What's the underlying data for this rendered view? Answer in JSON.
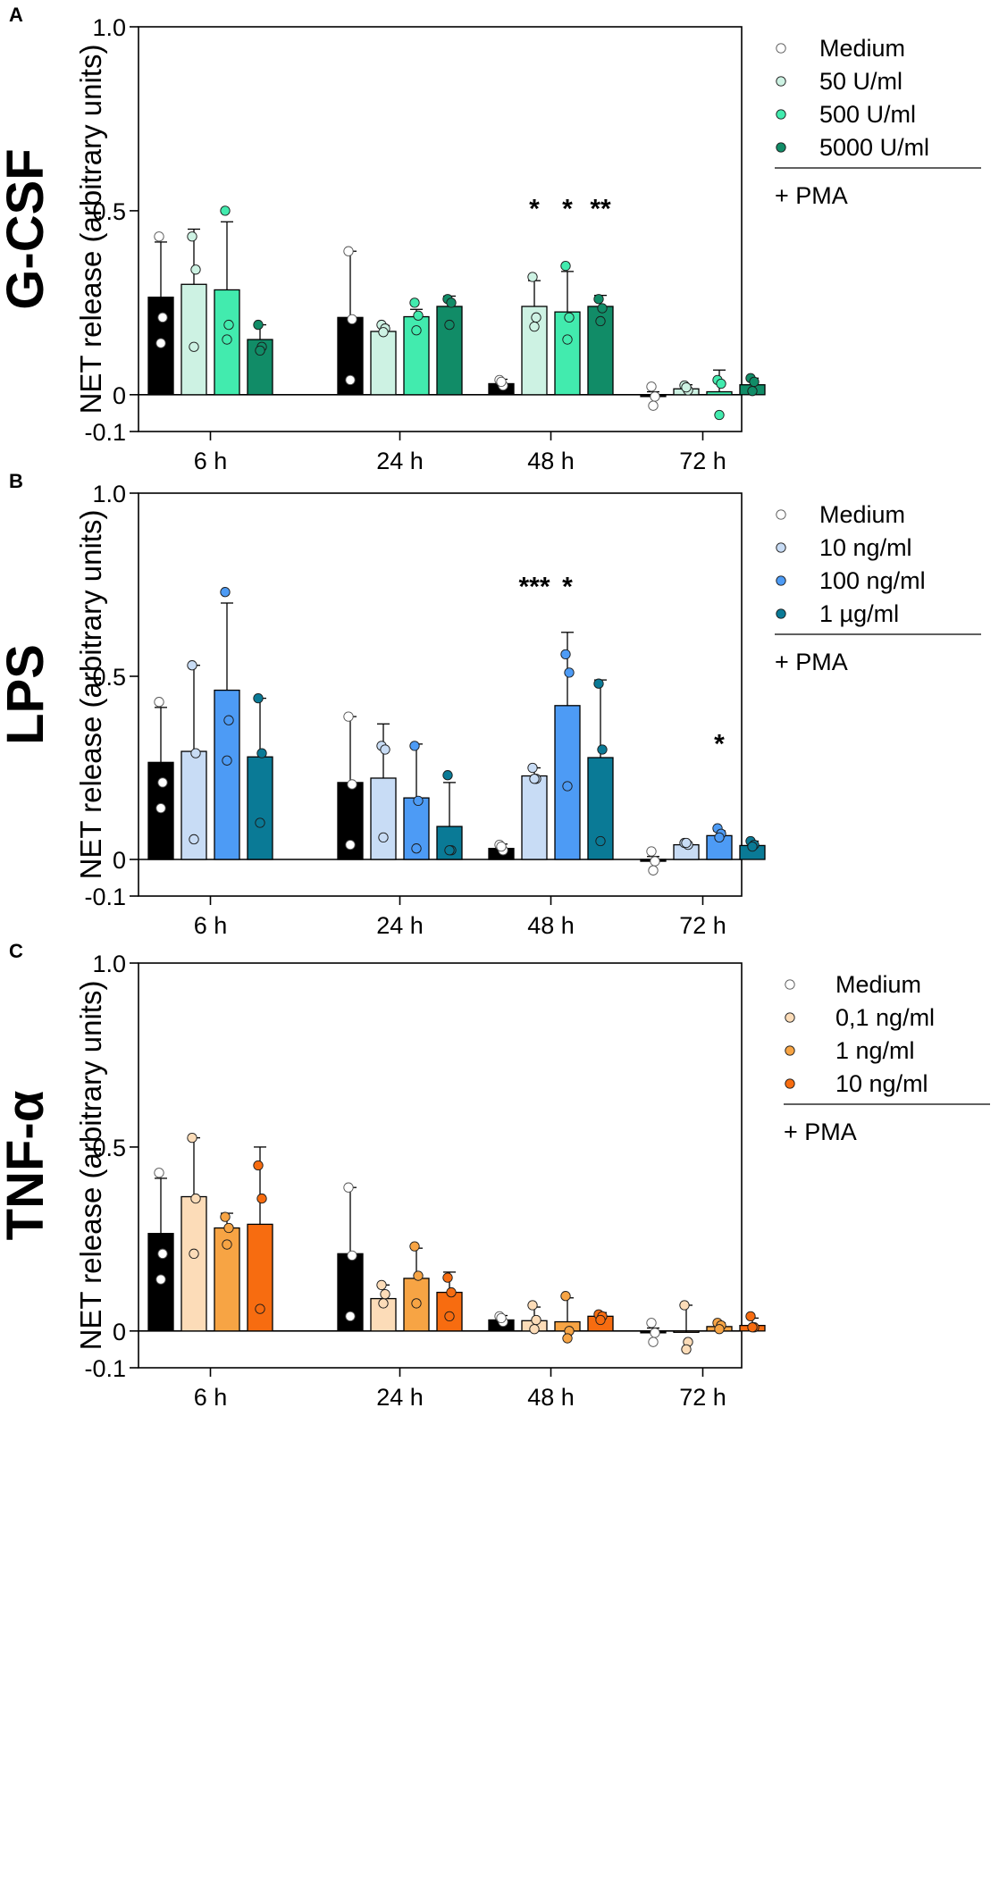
{
  "chart_data": [
    {
      "type": "bar",
      "panel_label": "A",
      "cytokine": "G-CSF",
      "ylabel": "NET release (arbitrary units)",
      "ylim": [
        -0.1,
        1.0
      ],
      "yticks": [
        "1.0",
        "0.5",
        "0",
        "-0.1"
      ],
      "categories": [
        "6 h",
        "24 h",
        "48 h",
        "72 h"
      ],
      "pma_label": "+ PMA",
      "series": [
        {
          "name": "Medium",
          "color": "#000000",
          "dot": "#ffffff",
          "values": [
            0.265,
            0.21,
            0.03,
            -0.005
          ],
          "sd_top": [
            0.415,
            0.39,
            0.042,
            0.008
          ],
          "points": [
            [
              0.43,
              0.21,
              0.14
            ],
            [
              0.39,
              0.205,
              0.04
            ],
            [
              0.04,
              0.025,
              0.035
            ],
            [
              0.022,
              -0.005,
              -0.03
            ]
          ]
        },
        {
          "name": "50 U/ml",
          "color": "#cdf2e3",
          "dot": "#cdf2e3",
          "values": [
            0.3,
            0.172,
            0.24,
            0.016
          ],
          "sd_top": [
            0.45,
            0.188,
            0.31,
            0.027
          ],
          "points": [
            [
              0.43,
              0.34,
              0.13
            ],
            [
              0.19,
              0.18,
              0.17
            ],
            [
              0.32,
              0.21,
              0.185
            ],
            [
              0.025,
              0.012,
              0.02
            ]
          ]
        },
        {
          "name": "500 U/ml",
          "color": "#42ebae",
          "dot": "#42ebae",
          "values": [
            0.285,
            0.212,
            0.225,
            0.008
          ],
          "sd_top": [
            0.47,
            0.232,
            0.335,
            0.067
          ],
          "points": [
            [
              0.5,
              0.19,
              0.15
            ],
            [
              0.25,
              0.215,
              0.175
            ],
            [
              0.35,
              0.21,
              0.15
            ],
            [
              0.04,
              0.03,
              -0.055
            ]
          ]
        },
        {
          "name": "5000 U/ml",
          "color": "#118c67",
          "dot": "#118c67",
          "values": [
            0.15,
            0.24,
            0.24,
            0.027
          ],
          "sd_top": [
            0.19,
            0.268,
            0.27,
            0.045
          ],
          "points": [
            [
              0.19,
              0.13,
              0.12
            ],
            [
              0.26,
              0.25,
              0.19
            ],
            [
              0.26,
              0.235,
              0.2
            ],
            [
              0.045,
              0.035,
              0.01
            ]
          ]
        }
      ],
      "annotations": [
        {
          "text": "*",
          "category": "48 h",
          "series": 1,
          "y": 0.53
        },
        {
          "text": "*",
          "category": "48 h",
          "series": 2,
          "y": 0.53
        },
        {
          "text": "**",
          "category": "48 h",
          "series": 3,
          "y": 0.53
        }
      ]
    },
    {
      "type": "bar",
      "panel_label": "B",
      "cytokine": "LPS",
      "ylabel": "NET release (arbitrary units)",
      "ylim": [
        -0.1,
        1.0
      ],
      "yticks": [
        "1.0",
        "0.5",
        "0",
        "-0.1"
      ],
      "categories": [
        "6 h",
        "24 h",
        "48 h",
        "72 h"
      ],
      "pma_label": "+ PMA",
      "series": [
        {
          "name": "Medium",
          "color": "#000000",
          "dot": "#ffffff",
          "values": [
            0.265,
            0.21,
            0.03,
            -0.005
          ],
          "sd_top": [
            0.415,
            0.39,
            0.042,
            0.008
          ],
          "points": [
            [
              0.43,
              0.21,
              0.14
            ],
            [
              0.39,
              0.205,
              0.04
            ],
            [
              0.04,
              0.025,
              0.035
            ],
            [
              0.022,
              -0.005,
              -0.03
            ]
          ]
        },
        {
          "name": "10 ng/ml",
          "color": "#c8dcf5",
          "dot": "#c8dcf5",
          "values": [
            0.295,
            0.222,
            0.228,
            0.04
          ],
          "sd_top": [
            0.53,
            0.37,
            0.25,
            0.045
          ],
          "points": [
            [
              0.53,
              0.29,
              0.055
            ],
            [
              0.31,
              0.3,
              0.06
            ],
            [
              0.25,
              0.22,
              0.22
            ],
            [
              0.045,
              0.04,
              0.045
            ]
          ]
        },
        {
          "name": "100 ng/ml",
          "color": "#4d9bf5",
          "dot": "#4d9bf5",
          "values": [
            0.462,
            0.168,
            0.42,
            0.065
          ],
          "sd_top": [
            0.7,
            0.315,
            0.62,
            0.078
          ],
          "points": [
            [
              0.73,
              0.38,
              0.27
            ],
            [
              0.31,
              0.16,
              0.03
            ],
            [
              0.56,
              0.51,
              0.2
            ],
            [
              0.085,
              0.07,
              0.06
            ]
          ]
        },
        {
          "name": "1 µg/ml",
          "color": "#0a7a96",
          "dot": "#0a7a96",
          "values": [
            0.28,
            0.09,
            0.278,
            0.038
          ],
          "sd_top": [
            0.44,
            0.21,
            0.49,
            0.05
          ],
          "points": [
            [
              0.44,
              0.29,
              0.1
            ],
            [
              0.23,
              0.025,
              0.025
            ],
            [
              0.48,
              0.3,
              0.05
            ],
            [
              0.05,
              0.04,
              0.035
            ]
          ]
        }
      ],
      "annotations": [
        {
          "text": "***",
          "category": "48 h",
          "series": 1,
          "y": 0.77
        },
        {
          "text": "*",
          "category": "48 h",
          "series": 2,
          "y": 0.77
        },
        {
          "text": "*",
          "category": "72 h",
          "series": 2,
          "y": 0.34
        }
      ]
    },
    {
      "type": "bar",
      "panel_label": "C",
      "cytokine": "TNF-α",
      "ylabel": "NET release (arbitrary units)",
      "ylim": [
        -0.1,
        1.0
      ],
      "yticks": [
        "1.0",
        "0.5",
        "0",
        "-0.1"
      ],
      "categories": [
        "6 h",
        "24 h",
        "48 h",
        "72 h"
      ],
      "pma_label": "+ PMA",
      "series": [
        {
          "name": "Medium",
          "color": "#000000",
          "dot": "#ffffff",
          "values": [
            0.265,
            0.21,
            0.03,
            -0.005
          ],
          "sd_top": [
            0.415,
            0.39,
            0.042,
            0.008
          ],
          "points": [
            [
              0.43,
              0.21,
              0.14
            ],
            [
              0.39,
              0.205,
              0.04
            ],
            [
              0.04,
              0.025,
              0.035
            ],
            [
              0.022,
              -0.005,
              -0.03
            ]
          ]
        },
        {
          "name": "0,1 ng/ml",
          "color": "#fcdcb8",
          "dot": "#fcdcb8",
          "values": [
            0.365,
            0.088,
            0.028,
            -0.003
          ],
          "sd_top": [
            0.525,
            0.125,
            0.065,
            0.07
          ],
          "points": [
            [
              0.525,
              0.36,
              0.21
            ],
            [
              0.125,
              0.1,
              0.075
            ],
            [
              0.07,
              0.03,
              0.005
            ],
            [
              0.07,
              -0.03,
              -0.05
            ]
          ]
        },
        {
          "name": "1 ng/ml",
          "color": "#f7a444",
          "dot": "#f7a444",
          "values": [
            0.28,
            0.143,
            0.025,
            0.012
          ],
          "sd_top": [
            0.32,
            0.225,
            0.09,
            0.022
          ],
          "points": [
            [
              0.31,
              0.28,
              0.235
            ],
            [
              0.23,
              0.15,
              0.075
            ],
            [
              0.095,
              0.0,
              -0.02
            ],
            [
              0.022,
              0.015,
              0.005
            ]
          ]
        },
        {
          "name": "10 ng/ml",
          "color": "#f76c10",
          "dot": "#f76c10",
          "values": [
            0.29,
            0.105,
            0.04,
            0.015
          ],
          "sd_top": [
            0.5,
            0.16,
            0.05,
            0.035
          ],
          "points": [
            [
              0.45,
              0.36,
              0.06
            ],
            [
              0.145,
              0.105,
              0.04
            ],
            [
              0.045,
              0.04,
              0.03
            ],
            [
              0.04,
              0.01,
              0.01
            ]
          ]
        }
      ],
      "annotations": []
    }
  ]
}
